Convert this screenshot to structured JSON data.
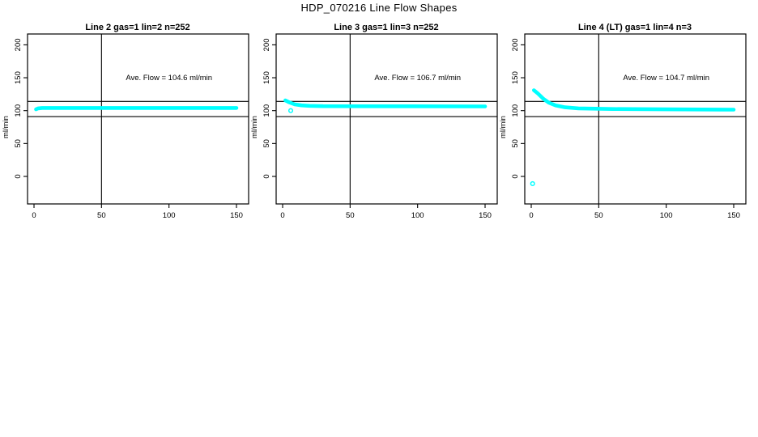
{
  "figure_title": "HDP_070216  Line Flow Shapes",
  "colors": {
    "data_series": "#00FFFF",
    "axis": "#000000",
    "background": "#FFFFFF"
  },
  "chart_data": [
    {
      "type": "scatter",
      "title": "Line 2 gas=1 lin=2 n=252",
      "annotation": "Ave. Flow =  104.6  ml/min",
      "ave_flow_ml_min": 104.6,
      "n_points": 252,
      "ylabel": "ml/min",
      "xticks": [
        0,
        50,
        100,
        150
      ],
      "yticks": [
        0,
        50,
        100,
        150,
        200
      ],
      "xlim": [
        -5,
        158
      ],
      "ylim": [
        -42,
        216
      ],
      "ref_vline_x": 50,
      "ref_hlines_y": [
        114,
        91
      ],
      "annotation_pos": [
        100,
        150
      ],
      "curve_points": [
        [
          1.5,
          102
        ],
        [
          3,
          103.5
        ],
        [
          6,
          104
        ],
        [
          60,
          104.1
        ],
        [
          150,
          104
        ]
      ],
      "lone_points": []
    },
    {
      "type": "scatter",
      "title": "Line 3 gas=1 lin=3 n=252",
      "annotation": "Ave. Flow =  106.7  ml/min",
      "ave_flow_ml_min": 106.7,
      "n_points": 252,
      "ylabel": "ml/min",
      "xticks": [
        0,
        50,
        100,
        150
      ],
      "yticks": [
        0,
        50,
        100,
        150,
        200
      ],
      "xlim": [
        -5,
        158
      ],
      "ylim": [
        -42,
        216
      ],
      "ref_vline_x": 50,
      "ref_hlines_y": [
        114,
        91
      ],
      "annotation_pos": [
        100,
        150
      ],
      "curve_points": [
        [
          2,
          115.5
        ],
        [
          5,
          112.5
        ],
        [
          9,
          109.5
        ],
        [
          14,
          108
        ],
        [
          20,
          107.2
        ],
        [
          30,
          106.8
        ],
        [
          80,
          106.6
        ],
        [
          150,
          106.4
        ]
      ],
      "lone_points": [
        [
          6,
          100
        ]
      ]
    },
    {
      "type": "scatter",
      "title": "Line 4 (LT) gas=1 lin=4 n=3",
      "annotation": "Ave. Flow =  104.7  ml/min",
      "ave_flow_ml_min": 104.7,
      "n_points": 3,
      "ylabel": "ml/min",
      "xticks": [
        0,
        50,
        100,
        150
      ],
      "yticks": [
        0,
        50,
        100,
        150,
        200
      ],
      "xlim": [
        -5,
        158
      ],
      "ylim": [
        -42,
        216
      ],
      "ref_vline_x": 50,
      "ref_hlines_y": [
        114,
        91
      ],
      "annotation_pos": [
        100,
        150
      ],
      "curve_points": [
        [
          2,
          131
        ],
        [
          5,
          126
        ],
        [
          9,
          118
        ],
        [
          13,
          112
        ],
        [
          18,
          108
        ],
        [
          25,
          105
        ],
        [
          35,
          103.5
        ],
        [
          60,
          102.5
        ],
        [
          100,
          102
        ],
        [
          150,
          101.5
        ]
      ],
      "lone_points": [
        [
          1,
          -11
        ]
      ]
    }
  ]
}
